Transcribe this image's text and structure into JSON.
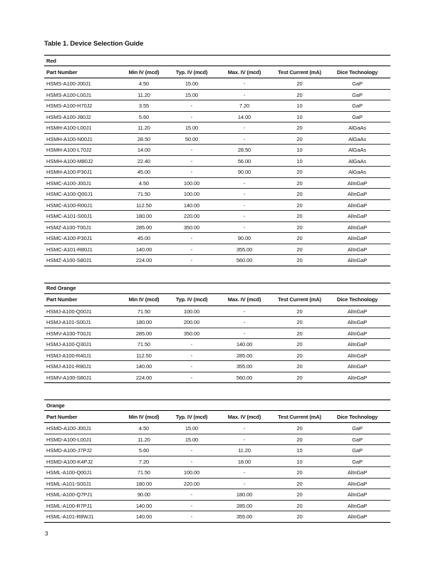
{
  "page": {
    "title": "Table 1. Device Selection Guide",
    "page_number": "3"
  },
  "columns": [
    "Part Number",
    "Min IV (mcd)",
    "Typ. IV (mcd)",
    "Max. IV (mcd)",
    "Test Current (mA)",
    "Dice Technology"
  ],
  "tables": [
    {
      "section": "Red",
      "rows": [
        [
          "HSMS-A100-J00J1",
          "4.50",
          "15.00",
          "-",
          "20",
          "GaP"
        ],
        [
          "HSMS-A100-L00J1",
          "11.20",
          "15.00",
          "-",
          "20",
          "GaP"
        ],
        [
          "HSMS-A100-H70J2",
          "3.55",
          "-",
          "7.20",
          "10",
          "GaP"
        ],
        [
          "HSMS-A100-J80J2",
          "5.60",
          "-",
          "14.00",
          "10",
          "GaP"
        ],
        [
          "HSMH-A100-L00J1",
          "11.20",
          "15.00",
          "-",
          "20",
          "AlGaAs"
        ],
        [
          "HSMH-A100-N00J1",
          "28.50",
          "50.00",
          "-",
          "20",
          "AlGaAs"
        ],
        [
          "HSMH-A100-L70J2",
          "14.00",
          "-",
          "28.50",
          "10",
          "AlGaAs"
        ],
        [
          "HSMH-A100-M80J2",
          "22.40",
          "-",
          "56.00",
          "10",
          "AlGaAs"
        ],
        [
          "HSMH-A100-P30J1",
          "45.00",
          "-",
          "90.00",
          "20",
          "AlGaAs"
        ],
        [
          "HSMC-A100-J00J1",
          "4.50",
          "100.00",
          "-",
          "20",
          "AlInGaP"
        ],
        [
          "HSMC-A100-Q00J1",
          "71.50",
          "100.00",
          "-",
          "20",
          "AlInGaP"
        ],
        [
          "HSMC-A100-R00J1",
          "112.50",
          "140.00",
          "-",
          "20",
          "AlInGaP"
        ],
        [
          "HSMC-A101-S00J1",
          "180.00",
          "220.00",
          "-",
          "20",
          "AlInGaP"
        ],
        [
          "HSMZ-A100-T00J1",
          "285.00",
          "350.00",
          "-",
          "20",
          "AlInGaP"
        ],
        [
          "HSMC-A100-P30J1",
          "45.00",
          "-",
          "90.00",
          "20",
          "AlInGaP"
        ],
        [
          "HSMC-A101-R80J1",
          "140.00",
          "-",
          "355.00",
          "20",
          "AlInGaP"
        ],
        [
          "HSMZ-A100-S80J1",
          "224.00",
          "-",
          "560.00",
          "20",
          "AlInGaP"
        ]
      ]
    },
    {
      "section": "Red Orange",
      "rows": [
        [
          "HSMJ-A100-Q00J1",
          "71.50",
          "100.00",
          "-",
          "20",
          "AlInGaP"
        ],
        [
          "HSMJ-A101-S00J1",
          "180.00",
          "200.00",
          "-",
          "20",
          "AlInGaP"
        ],
        [
          "HSMV-A100-T00J1",
          "285.00",
          "350.00",
          "-",
          "20",
          "AlInGaP"
        ],
        [
          "HSMJ-A100-Q30J1",
          "71.50",
          "-",
          "140.00",
          "20",
          "AlInGaP"
        ],
        [
          "HSMJ-A100-R40J1",
          "112.50",
          "-",
          "285.00",
          "20",
          "AlInGaP"
        ],
        [
          "HSMJ-A101-R80J1",
          "140.00",
          "-",
          "355.00",
          "20",
          "AlInGaP"
        ],
        [
          "HSMV-A100-S80J1",
          "224.00",
          "-",
          "560.00",
          "20",
          "AlInGaP"
        ]
      ]
    },
    {
      "section": "Orange",
      "rows": [
        [
          "HSMD-A100-J00J1",
          "4.50",
          "15.00",
          "-",
          "20",
          "GaP"
        ],
        [
          "HSMD-A100-L00J1",
          "11.20",
          "15.00",
          "-",
          "20",
          "GaP"
        ],
        [
          "HSMD-A100-J7PJ2",
          "5.60",
          "-",
          "11.20",
          "10",
          "GaP"
        ],
        [
          "HSMD-A100-K4PJ2",
          "7.20",
          "-",
          "18.00",
          "10",
          "GaP"
        ],
        [
          "HSML-A100-Q00J1",
          "71.50",
          "100.00",
          "-",
          "20",
          "AlInGaP"
        ],
        [
          "HSML-A101-S00J1",
          "180.00",
          "220.00",
          "-",
          "20",
          "AlInGaP"
        ],
        [
          "HSML-A100-Q7PJ1",
          "90.00",
          "-",
          "180.00",
          "20",
          "AlInGaP"
        ],
        [
          "HSML-A100-R7PJ1",
          "140.00",
          "-",
          "285.00",
          "20",
          "AlInGaP"
        ],
        [
          "HSML-A101-R8WJ1",
          "140.00",
          "-",
          "355.00",
          "20",
          "AlInGaP"
        ]
      ]
    }
  ]
}
